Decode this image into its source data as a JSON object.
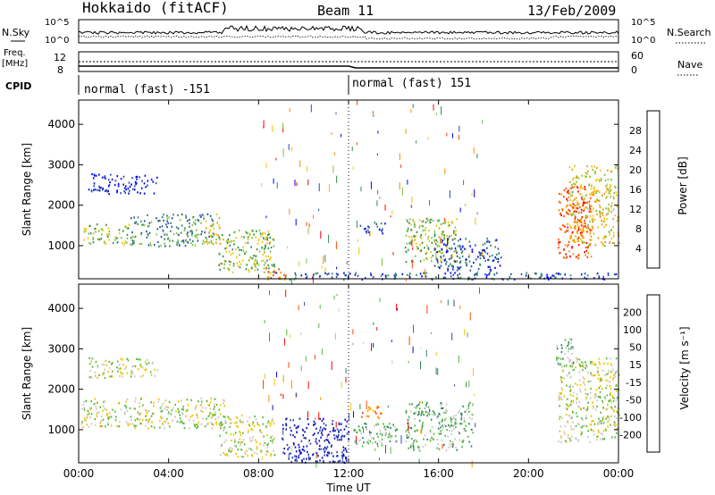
{
  "header": {
    "radar": "Hokkaido (fitACF)",
    "beam": "Beam 11",
    "date": "13/Feb/2009"
  },
  "noise_panel": {
    "left_label": "N.Sky",
    "right_label": "N.Search",
    "tick_top": "10^5",
    "tick_bottom": "10^0"
  },
  "freq_panel": {
    "label_line1": "Freq.",
    "label_line2": "[MHz]",
    "left_tick_top": "12",
    "left_tick_bottom": "8",
    "right_label": "Nave",
    "right_tick_top": "60",
    "right_tick_bottom": "0"
  },
  "cpid_panel": {
    "label": "CPID",
    "segments": [
      {
        "text": "normal (fast) -151"
      },
      {
        "text": "normal (fast) 151"
      }
    ]
  },
  "x_axis": {
    "label": "Time UT",
    "ticks": [
      "00:00",
      "04:00",
      "08:00",
      "12:00",
      "16:00",
      "20:00",
      "00:00"
    ],
    "ticks_hours": [
      0,
      4,
      8,
      12,
      16,
      20,
      24
    ]
  },
  "chart_data": [
    {
      "type": "heatmap",
      "name": "power",
      "title": "",
      "xlabel": "Time UT",
      "ylabel": "Slant Range [km]",
      "xlim_hours": [
        0,
        24
      ],
      "ylim_km": [
        180,
        4600
      ],
      "yticks": [
        "1000",
        "2000",
        "3000",
        "4000"
      ],
      "yticks_values": [
        1000,
        2000,
        3000,
        4000
      ],
      "colorbar": {
        "label": "Power [dB]",
        "ticks": [
          "4",
          "8",
          "12",
          "16",
          "20",
          "24",
          "28"
        ],
        "colors": [
          "#0000ff",
          "#2b4ea8",
          "#2e8b57",
          "#7cc444",
          "#f2c200",
          "#ff8c00",
          "#ff4400",
          "#ff0000"
        ]
      },
      "echo_regions": [
        {
          "t0": 0.1,
          "t1": 2.3,
          "r0": 1050,
          "r1": 1550,
          "level": 3
        },
        {
          "t0": 2.3,
          "t1": 6.0,
          "r0": 1000,
          "r1": 1800,
          "level": 2
        },
        {
          "t0": 5.6,
          "t1": 6.3,
          "r0": 1050,
          "r1": 1800,
          "level": 4
        },
        {
          "t0": 6.2,
          "t1": 8.7,
          "r0": 350,
          "r1": 1400,
          "level": 3
        },
        {
          "t0": 0.4,
          "t1": 3.5,
          "r0": 2300,
          "r1": 2800,
          "level": 0
        },
        {
          "t0": 8.2,
          "t1": 9.2,
          "r0": 180,
          "r1": 500,
          "level": 5
        },
        {
          "t0": 12.5,
          "t1": 13.6,
          "r0": 1300,
          "r1": 1600,
          "level": 1
        },
        {
          "t0": 14.5,
          "t1": 16.8,
          "r0": 600,
          "r1": 1700,
          "level": 3
        },
        {
          "t0": 15.8,
          "t1": 18.8,
          "r0": 400,
          "r1": 1200,
          "level": 1
        },
        {
          "t0": 21.3,
          "t1": 22.8,
          "r0": 700,
          "r1": 2500,
          "level": 6
        },
        {
          "t0": 21.8,
          "t1": 24.0,
          "r0": 1000,
          "r1": 3000,
          "level": 4
        },
        {
          "t0": 8.5,
          "t1": 24.0,
          "r0": 180,
          "r1": 350,
          "level": 1
        }
      ]
    },
    {
      "type": "heatmap",
      "name": "velocity",
      "title": "",
      "xlabel": "Time UT",
      "ylabel": "Slant Range [km]",
      "xlim_hours": [
        0,
        24
      ],
      "ylim_km": [
        180,
        4600
      ],
      "yticks": [
        "1000",
        "2000",
        "3000",
        "4000"
      ],
      "yticks_values": [
        1000,
        2000,
        3000,
        4000
      ],
      "colorbar": {
        "label": "Velocity [m s⁻¹]",
        "ticks": [
          "200",
          "100",
          "50",
          "15",
          "-15",
          "-50",
          "-100",
          "-200"
        ],
        "colors": [
          "#1010c0",
          "#2b4ea8",
          "#2e8b57",
          "#55bb33",
          "#c8c8c8",
          "#f2c200",
          "#ff8c00",
          "#ff4400",
          "#ff0000"
        ]
      },
      "echo_regions": [
        {
          "t0": 0.1,
          "t1": 6.5,
          "r0": 1050,
          "r1": 1800,
          "level": 4
        },
        {
          "t0": 0.4,
          "t1": 3.5,
          "r0": 2300,
          "r1": 2800,
          "level": 4
        },
        {
          "t0": 6.2,
          "t1": 8.7,
          "r0": 350,
          "r1": 1400,
          "level": 4
        },
        {
          "t0": 9.0,
          "t1": 12.0,
          "r0": 200,
          "r1": 1300,
          "level": 0
        },
        {
          "t0": 12.5,
          "t1": 13.6,
          "r0": 1300,
          "r1": 1600,
          "level": 6
        },
        {
          "t0": 12.2,
          "t1": 14.2,
          "r0": 600,
          "r1": 1200,
          "level": 3
        },
        {
          "t0": 14.5,
          "t1": 17.5,
          "r0": 500,
          "r1": 1700,
          "level": 3
        },
        {
          "t0": 21.3,
          "t1": 24.0,
          "r0": 700,
          "r1": 2800,
          "level": 4
        },
        {
          "t0": 21.2,
          "t1": 22.0,
          "r0": 2600,
          "r1": 3300,
          "level": 3
        }
      ]
    }
  ]
}
